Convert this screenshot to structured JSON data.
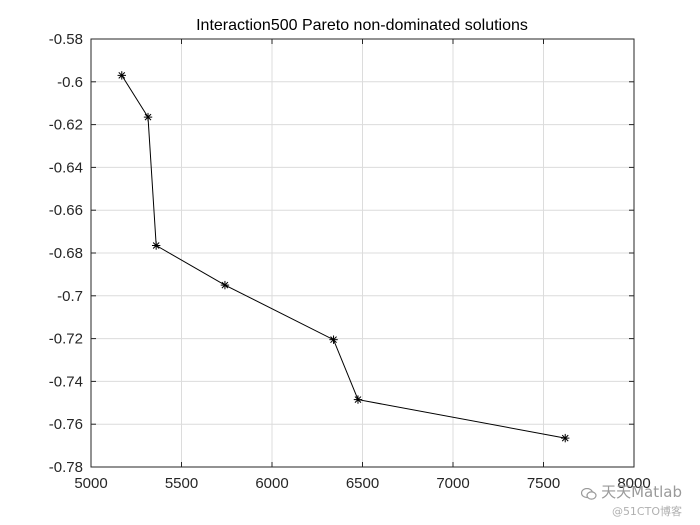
{
  "chart_data": {
    "type": "line",
    "title": "Interaction500 Pareto non-dominated solutions",
    "xlabel": "",
    "ylabel": "",
    "xlim": [
      5000,
      8000
    ],
    "ylim": [
      -0.78,
      -0.58
    ],
    "xticks": [
      5000,
      5500,
      6000,
      6500,
      7000,
      7500,
      8000
    ],
    "yticks": [
      -0.58,
      -0.6,
      -0.62,
      -0.64,
      -0.66,
      -0.68,
      -0.7,
      -0.72,
      -0.74,
      -0.76,
      -0.78
    ],
    "xtick_labels": [
      "5000",
      "5500",
      "6000",
      "6500",
      "7000",
      "7500",
      "8000"
    ],
    "ytick_labels": [
      "-0.58",
      "-0.6",
      "-0.62",
      "-0.64",
      "-0.66",
      "-0.68",
      "-0.7",
      "-0.72",
      "-0.74",
      "-0.76",
      "-0.78"
    ],
    "grid": true,
    "marker": "*",
    "series": [
      {
        "x": [
          5170,
          5315,
          5360,
          5740,
          6340,
          6475,
          7620
        ],
        "y": [
          -0.597,
          -0.6165,
          -0.6765,
          -0.695,
          -0.7205,
          -0.7485,
          -0.7665
        ]
      }
    ],
    "colors": {
      "line": "#000000",
      "grid": "#dcdcdc",
      "axes": "#262626"
    }
  },
  "watermark": {
    "line1": "天天Matlab",
    "line2": "@51CTO博客",
    "icon": "wechat-icon"
  }
}
